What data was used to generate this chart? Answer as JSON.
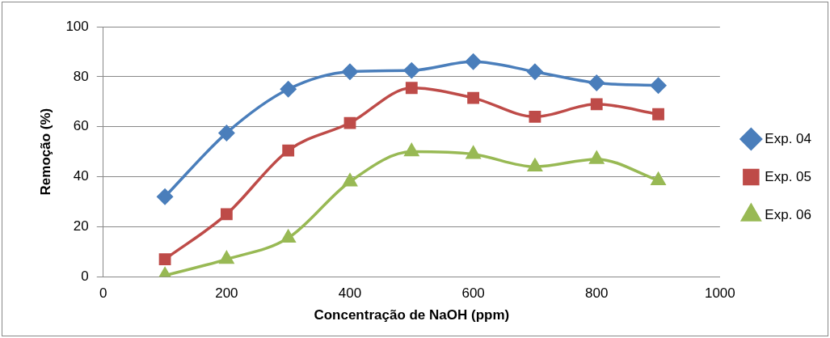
{
  "chart_data": {
    "type": "line",
    "xlabel": "Concentração de NaOH (ppm)",
    "ylabel": "Remoção (%)",
    "x": [
      100,
      200,
      300,
      400,
      500,
      600,
      700,
      800,
      900
    ],
    "series": [
      {
        "name": "Exp. 04",
        "color": "#4a7ebb",
        "marker": "diamond",
        "values": [
          32,
          57.5,
          75,
          82,
          82.5,
          86,
          82,
          77.5,
          76.5
        ]
      },
      {
        "name": "Exp. 05",
        "color": "#be4b48",
        "marker": "square",
        "values": [
          7,
          25,
          50.5,
          61.5,
          75.5,
          71.5,
          64,
          69,
          65
        ]
      },
      {
        "name": "Exp. 06",
        "color": "#98b954",
        "marker": "triangle",
        "values": [
          0.5,
          7,
          15.5,
          38,
          50,
          49,
          44,
          47,
          38.5
        ]
      }
    ],
    "xlim": [
      0,
      1000
    ],
    "xticks": [
      0,
      200,
      400,
      600,
      800,
      1000
    ],
    "ylim": [
      0,
      100
    ],
    "yticks": [
      0,
      20,
      40,
      60,
      80,
      100
    ],
    "grid": "y",
    "legend": "right"
  }
}
